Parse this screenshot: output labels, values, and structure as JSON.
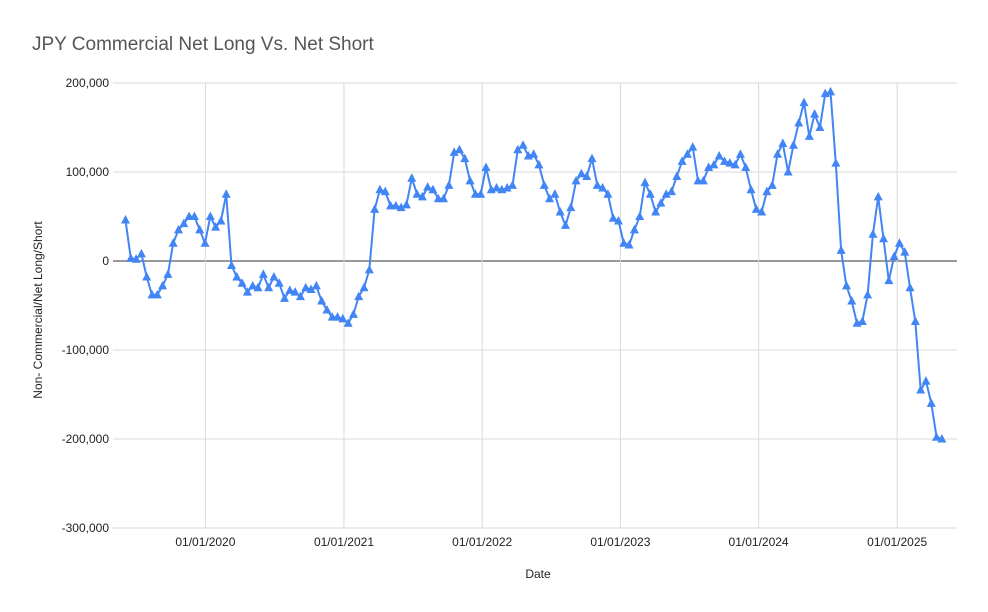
{
  "chart_data": {
    "type": "line",
    "title": "JPY Commercial Net Long Vs. Net Short",
    "x_label": "Date",
    "y_label": "Non- Commercial/Net Long/Short",
    "x": [
      "2019-06-04",
      "2019-06-18",
      "2019-07-02",
      "2019-07-16",
      "2019-07-30",
      "2019-08-13",
      "2019-08-27",
      "2019-09-10",
      "2019-09-24",
      "2019-10-08",
      "2019-10-22",
      "2019-11-05",
      "2019-11-19",
      "2019-12-03",
      "2019-12-17",
      "2019-12-31",
      "2020-01-14",
      "2020-01-28",
      "2020-02-11",
      "2020-02-25",
      "2020-03-10",
      "2020-03-24",
      "2020-04-07",
      "2020-04-21",
      "2020-05-05",
      "2020-05-19",
      "2020-06-02",
      "2020-06-16",
      "2020-06-30",
      "2020-07-14",
      "2020-07-28",
      "2020-08-11",
      "2020-08-25",
      "2020-09-08",
      "2020-09-22",
      "2020-10-06",
      "2020-10-20",
      "2020-11-03",
      "2020-11-17",
      "2020-12-01",
      "2020-12-15",
      "2020-12-29",
      "2021-01-12",
      "2021-01-26",
      "2021-02-09",
      "2021-02-23",
      "2021-03-09",
      "2021-03-23",
      "2021-04-06",
      "2021-04-20",
      "2021-05-04",
      "2021-05-18",
      "2021-06-01",
      "2021-06-15",
      "2021-06-29",
      "2021-07-13",
      "2021-07-27",
      "2021-08-10",
      "2021-08-24",
      "2021-09-07",
      "2021-09-21",
      "2021-10-05",
      "2021-10-19",
      "2021-11-02",
      "2021-11-16",
      "2021-11-30",
      "2021-12-14",
      "2021-12-28",
      "2022-01-11",
      "2022-01-25",
      "2022-02-08",
      "2022-02-22",
      "2022-03-08",
      "2022-03-22",
      "2022-04-05",
      "2022-04-19",
      "2022-05-03",
      "2022-05-17",
      "2022-05-31",
      "2022-06-14",
      "2022-06-28",
      "2022-07-12",
      "2022-07-26",
      "2022-08-09",
      "2022-08-23",
      "2022-09-06",
      "2022-09-20",
      "2022-10-04",
      "2022-10-18",
      "2022-11-01",
      "2022-11-15",
      "2022-11-29",
      "2022-12-13",
      "2022-12-27",
      "2023-01-10",
      "2023-01-24",
      "2023-02-07",
      "2023-02-21",
      "2023-03-07",
      "2023-03-21",
      "2023-04-04",
      "2023-04-18",
      "2023-05-02",
      "2023-05-16",
      "2023-05-30",
      "2023-06-13",
      "2023-06-27",
      "2023-07-11",
      "2023-07-25",
      "2023-08-08",
      "2023-08-22",
      "2023-09-05",
      "2023-09-19",
      "2023-10-03",
      "2023-10-17",
      "2023-10-31",
      "2023-11-14",
      "2023-11-28",
      "2023-12-12",
      "2023-12-26",
      "2024-01-09",
      "2024-01-23",
      "2024-02-06",
      "2024-02-20",
      "2024-03-05",
      "2024-03-19",
      "2024-04-02",
      "2024-04-16",
      "2024-04-30",
      "2024-05-14",
      "2024-05-28",
      "2024-06-11",
      "2024-06-25",
      "2024-07-09",
      "2024-07-23",
      "2024-08-06",
      "2024-08-20",
      "2024-09-03",
      "2024-09-17",
      "2024-10-01",
      "2024-10-15",
      "2024-10-29",
      "2024-11-12",
      "2024-11-26",
      "2024-12-10",
      "2024-12-24",
      "2025-01-07",
      "2025-01-21",
      "2025-02-04",
      "2025-02-18",
      "2025-03-04",
      "2025-03-18",
      "2025-04-01",
      "2025-04-15",
      "2025-04-29"
    ],
    "series": [
      {
        "color": "#4285f4",
        "values": [
          46000,
          3000,
          2000,
          8000,
          -18000,
          -38000,
          -38000,
          -28000,
          -15000,
          20000,
          35000,
          42000,
          50000,
          50000,
          35000,
          20000,
          50000,
          38000,
          45000,
          75000,
          -5000,
          -18000,
          -25000,
          -35000,
          -28000,
          -30000,
          -15000,
          -30000,
          -18000,
          -25000,
          -42000,
          -33000,
          -35000,
          -40000,
          -30000,
          -32000,
          -28000,
          -45000,
          -55000,
          -63000,
          -63000,
          -65000,
          -70000,
          -60000,
          -40000,
          -30000,
          -10000,
          58000,
          80000,
          78000,
          62000,
          62000,
          60000,
          63000,
          93000,
          75000,
          72000,
          83000,
          80000,
          70000,
          70000,
          85000,
          122000,
          125000,
          115000,
          90000,
          75000,
          75000,
          105000,
          80000,
          82000,
          80000,
          82000,
          85000,
          125000,
          130000,
          118000,
          120000,
          108000,
          85000,
          70000,
          75000,
          55000,
          40000,
          60000,
          90000,
          98000,
          95000,
          115000,
          85000,
          82000,
          75000,
          48000,
          45000,
          20000,
          18000,
          35000,
          50000,
          88000,
          75000,
          55000,
          65000,
          75000,
          78000,
          95000,
          112000,
          120000,
          128000,
          90000,
          90000,
          105000,
          108000,
          118000,
          112000,
          110000,
          108000,
          120000,
          105000,
          80000,
          58000,
          55000,
          78000,
          85000,
          120000,
          132000,
          100000,
          130000,
          155000,
          178000,
          140000,
          165000,
          150000,
          188000,
          190000,
          110000,
          12000,
          -28000,
          -45000,
          -70000,
          -68000,
          -38000,
          30000,
          72000,
          25000,
          -22000,
          5000,
          20000,
          10000,
          -30000,
          -68000,
          -145000,
          -135000,
          -160000,
          -198000,
          -200000
        ]
      }
    ],
    "xlim": [
      "2019-05-02",
      "2025-06-08"
    ],
    "xticks": [
      {
        "value": "2020-01-01",
        "label": "01/01/2020"
      },
      {
        "value": "2021-01-01",
        "label": "01/01/2021"
      },
      {
        "value": "2022-01-01",
        "label": "01/01/2022"
      },
      {
        "value": "2023-01-01",
        "label": "01/01/2023"
      },
      {
        "value": "2024-01-01",
        "label": "01/01/2024"
      },
      {
        "value": "2025-01-01",
        "label": "01/01/2025"
      }
    ],
    "ylim": [
      -300000,
      200000
    ],
    "yticks": [
      {
        "value": -300000,
        "label": "-300,000"
      },
      {
        "value": -200000,
        "label": "-200,000"
      },
      {
        "value": -100000,
        "label": "-100,000"
      },
      0,
      {
        "value": 100000,
        "label": "100,000"
      },
      {
        "value": 200000,
        "label": "200,000"
      }
    ],
    "grid": true,
    "marker": "triangle"
  }
}
